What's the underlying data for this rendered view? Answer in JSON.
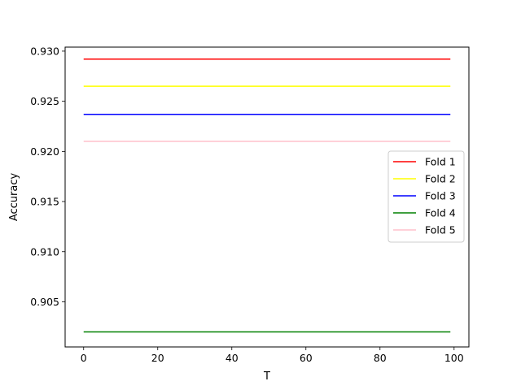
{
  "chart_data": {
    "type": "line",
    "xlabel": "T",
    "ylabel": "Accuracy",
    "xlim": [
      -5,
      104
    ],
    "ylim": [
      0.9005,
      0.9304
    ],
    "xticks": [
      0,
      20,
      40,
      60,
      80,
      100
    ],
    "xtick_labels": [
      "0",
      "20",
      "40",
      "60",
      "80",
      "100"
    ],
    "yticks": [
      0.905,
      0.91,
      0.915,
      0.92,
      0.925,
      0.93
    ],
    "ytick_labels": [
      "0.905",
      "0.910",
      "0.915",
      "0.920",
      "0.925",
      "0.930"
    ],
    "grid": false,
    "legend_position": "center-right",
    "x": [
      0,
      99
    ],
    "series": [
      {
        "name": "Fold 1",
        "color": "#ff0000",
        "values": [
          0.9292,
          0.9292
        ]
      },
      {
        "name": "Fold 2",
        "color": "#ffff00",
        "values": [
          0.9265,
          0.9265
        ]
      },
      {
        "name": "Fold 3",
        "color": "#0000ff",
        "values": [
          0.9237,
          0.9237
        ]
      },
      {
        "name": "Fold 4",
        "color": "#008000",
        "values": [
          0.902,
          0.902
        ]
      },
      {
        "name": "Fold 5",
        "color": "#ffc0cb",
        "values": [
          0.921,
          0.921
        ]
      }
    ]
  }
}
